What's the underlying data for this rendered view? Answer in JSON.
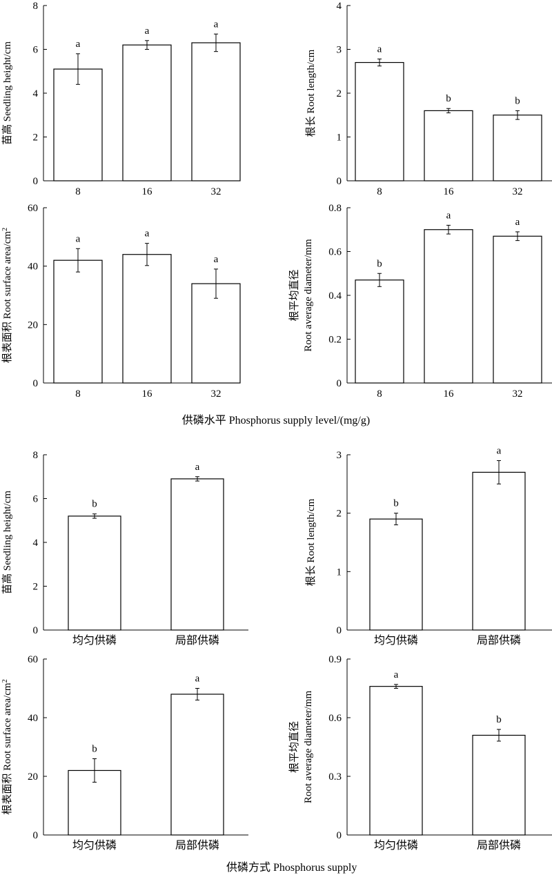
{
  "figure": {
    "xtitle_top": "供磷水平 Phosphorus supply level/(mg/g)",
    "xtitle_bottom": "供磷方式 Phosphorus supply"
  },
  "chart_data": [
    {
      "type": "bar",
      "categories": [
        "8",
        "16",
        "32"
      ],
      "values": [
        5.1,
        6.2,
        6.3
      ],
      "errors": [
        0.7,
        0.2,
        0.4
      ],
      "letters": [
        "a",
        "a",
        "a"
      ],
      "ylabel": "苗高 Seedling height/cm",
      "ylim": [
        0,
        8
      ],
      "yticks": [
        0,
        2,
        4,
        6,
        8
      ],
      "ytick_labels": [
        "0",
        "2",
        "4",
        "6",
        "8"
      ]
    },
    {
      "type": "bar",
      "categories": [
        "8",
        "16",
        "32"
      ],
      "values": [
        2.7,
        1.6,
        1.5
      ],
      "errors": [
        0.08,
        0.05,
        0.1
      ],
      "letters": [
        "a",
        "b",
        "b"
      ],
      "ylabel": "根长 Root length/cm",
      "ylim": [
        0,
        4
      ],
      "yticks": [
        0,
        1,
        2,
        3,
        4
      ],
      "ytick_labels": [
        "0",
        "1",
        "2",
        "3",
        "4"
      ]
    },
    {
      "type": "bar",
      "categories": [
        "8",
        "16",
        "32"
      ],
      "values": [
        42,
        44,
        34
      ],
      "errors": [
        4,
        3.8,
        5
      ],
      "letters": [
        "a",
        "a",
        "a"
      ],
      "ylabel": "根表面积 Root surface area/cm",
      "ylabel_sup": "2",
      "ylim": [
        0,
        60
      ],
      "yticks": [
        0,
        20,
        40,
        60
      ],
      "ytick_labels": [
        "0",
        "20",
        "40",
        "60"
      ]
    },
    {
      "type": "bar",
      "categories": [
        "8",
        "16",
        "32"
      ],
      "values": [
        0.47,
        0.7,
        0.67
      ],
      "errors": [
        0.03,
        0.02,
        0.02
      ],
      "letters": [
        "b",
        "a",
        "a"
      ],
      "ylabel_lines": [
        "根平均直径",
        "Root average diameter/mm"
      ],
      "ylim": [
        0,
        0.8
      ],
      "yticks": [
        0,
        0.2,
        0.4,
        0.6,
        0.8
      ],
      "ytick_labels": [
        "0",
        "0.2",
        "0.4",
        "0.6",
        "0.8"
      ]
    },
    {
      "type": "bar",
      "categories": [
        "均匀供磷",
        "局部供磷"
      ],
      "values": [
        5.2,
        6.9
      ],
      "errors": [
        0.1,
        0.1
      ],
      "letters": [
        "b",
        "a"
      ],
      "ylabel": "苗高 Seedling height/cm",
      "ylim": [
        0,
        8
      ],
      "yticks": [
        0,
        2,
        4,
        6,
        8
      ],
      "ytick_labels": [
        "0",
        "2",
        "4",
        "6",
        "8"
      ]
    },
    {
      "type": "bar",
      "categories": [
        "均匀供磷",
        "局部供磷"
      ],
      "values": [
        1.9,
        2.7
      ],
      "errors": [
        0.1,
        0.2
      ],
      "letters": [
        "b",
        "a"
      ],
      "ylabel": "根长 Root length/cm",
      "ylim": [
        0,
        3
      ],
      "yticks": [
        0,
        1,
        2,
        3
      ],
      "ytick_labels": [
        "0",
        "1",
        "2",
        "3"
      ]
    },
    {
      "type": "bar",
      "categories": [
        "均匀供磷",
        "局部供磷"
      ],
      "values": [
        22,
        48
      ],
      "errors": [
        4,
        2
      ],
      "letters": [
        "b",
        "a"
      ],
      "ylabel": "根表面积 Root surface area/cm",
      "ylabel_sup": "2",
      "ylim": [
        0,
        60
      ],
      "yticks": [
        0,
        20,
        40,
        60
      ],
      "ytick_labels": [
        "0",
        "20",
        "40",
        "60"
      ]
    },
    {
      "type": "bar",
      "categories": [
        "均匀供磷",
        "局部供磷"
      ],
      "values": [
        0.76,
        0.51
      ],
      "errors": [
        0.01,
        0.03
      ],
      "letters": [
        "a",
        "b"
      ],
      "ylabel_lines": [
        "根平均直径",
        "Root average diameter/mm"
      ],
      "ylim": [
        0,
        0.9
      ],
      "yticks": [
        0,
        0.3,
        0.6,
        0.9
      ],
      "ytick_labels": [
        "0",
        "0.3",
        "0.6",
        "0.9"
      ]
    }
  ]
}
